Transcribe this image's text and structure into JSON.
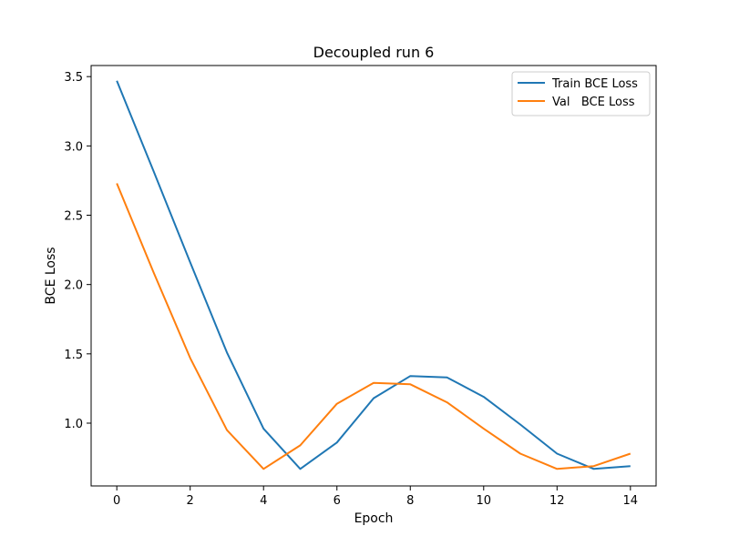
{
  "chart_data": {
    "type": "line",
    "title": "Decoupled run 6",
    "xlabel": "Epoch",
    "ylabel": "BCE Loss",
    "x": [
      0,
      1,
      2,
      3,
      4,
      5,
      6,
      7,
      8,
      9,
      10,
      11,
      12,
      13,
      14
    ],
    "xlim": [
      -0.7,
      14.7
    ],
    "ylim": [
      0.547,
      3.58
    ],
    "xticks": [
      0,
      2,
      4,
      6,
      8,
      10,
      12,
      14
    ],
    "xtick_labels": [
      "0",
      "2",
      "4",
      "6",
      "8",
      "10",
      "12",
      "14"
    ],
    "yticks": [
      1.0,
      1.5,
      2.0,
      2.5,
      3.0,
      3.5
    ],
    "ytick_labels": [
      "1.0",
      "1.5",
      "2.0",
      "2.5",
      "3.0",
      "3.5"
    ],
    "grid": false,
    "legend_position": "top-right",
    "series": [
      {
        "name": "Train BCE Loss",
        "color": "#1f77b4",
        "values": [
          3.47,
          2.82,
          2.16,
          1.51,
          0.96,
          0.67,
          0.86,
          1.18,
          1.34,
          1.33,
          1.19,
          0.99,
          0.78,
          0.67,
          0.69
        ]
      },
      {
        "name": "Val   BCE Loss",
        "color": "#ff7f0e",
        "values": [
          2.73,
          2.09,
          1.47,
          0.95,
          0.67,
          0.84,
          1.14,
          1.29,
          1.28,
          1.15,
          0.96,
          0.78,
          0.67,
          0.69,
          0.78
        ]
      }
    ]
  }
}
